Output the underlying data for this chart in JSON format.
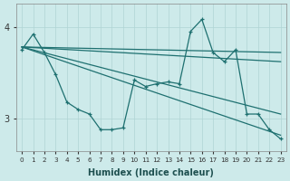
{
  "xlabel": "Humidex (Indice chaleur)",
  "xlim": [
    -0.5,
    23.5
  ],
  "ylim": [
    2.65,
    4.25
  ],
  "yticks": [
    3,
    4
  ],
  "xticks": [
    0,
    1,
    2,
    3,
    4,
    5,
    6,
    7,
    8,
    9,
    10,
    11,
    12,
    13,
    14,
    15,
    16,
    17,
    18,
    19,
    20,
    21,
    22,
    23
  ],
  "background_color": "#cdeaea",
  "grid_color": "#afd4d4",
  "line_color": "#1e7070",
  "lines": [
    {
      "x": [
        0,
        1,
        2,
        3,
        4,
        5,
        6,
        7,
        8,
        9,
        10,
        11,
        12,
        13,
        14,
        15,
        16,
        17,
        18,
        19,
        20,
        21,
        22,
        23
      ],
      "y": [
        3.75,
        3.92,
        3.72,
        3.48,
        3.18,
        3.1,
        3.05,
        2.88,
        2.88,
        2.9,
        3.42,
        3.35,
        3.38,
        3.4,
        3.38,
        3.95,
        4.08,
        3.72,
        3.62,
        3.75,
        3.05,
        3.05,
        2.88,
        2.78
      ]
    },
    {
      "x": [
        0,
        23
      ],
      "y": [
        3.78,
        2.82
      ]
    },
    {
      "x": [
        0,
        23
      ],
      "y": [
        3.78,
        3.05
      ]
    },
    {
      "x": [
        0,
        23
      ],
      "y": [
        3.78,
        3.62
      ]
    },
    {
      "x": [
        0,
        23
      ],
      "y": [
        3.78,
        3.72
      ]
    }
  ]
}
